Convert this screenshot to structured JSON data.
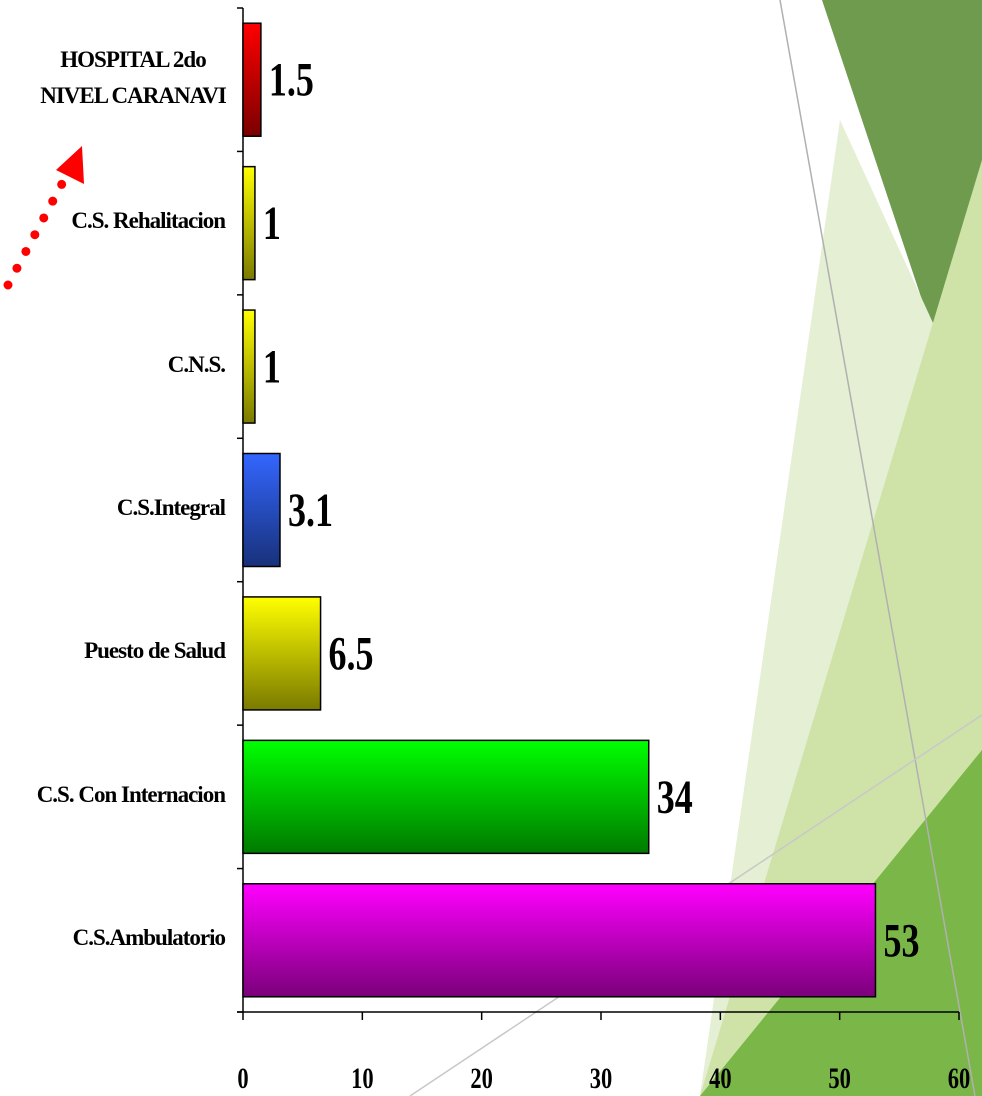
{
  "chart_data": {
    "type": "bar",
    "orientation": "horizontal",
    "categories": [
      "C.S.Ambulatorio",
      "C.S. Con Internacion",
      "Puesto de Salud",
      "C.S.Integral",
      "C.N.S.",
      "C.S. Rehalitacion",
      "HOSPITAL 2do NIVEL CARANAVI"
    ],
    "values": [
      53,
      34,
      6.5,
      3.1,
      1,
      1,
      1.5
    ],
    "colors": [
      "#ff00ff",
      "#00ff00",
      "#ffff00",
      "#3366ff",
      "#ffff00",
      "#ffff00",
      "#ff0000"
    ],
    "xlim": [
      0,
      60
    ],
    "xticks": [
      0,
      10,
      20,
      30,
      40,
      50,
      60
    ]
  }
}
